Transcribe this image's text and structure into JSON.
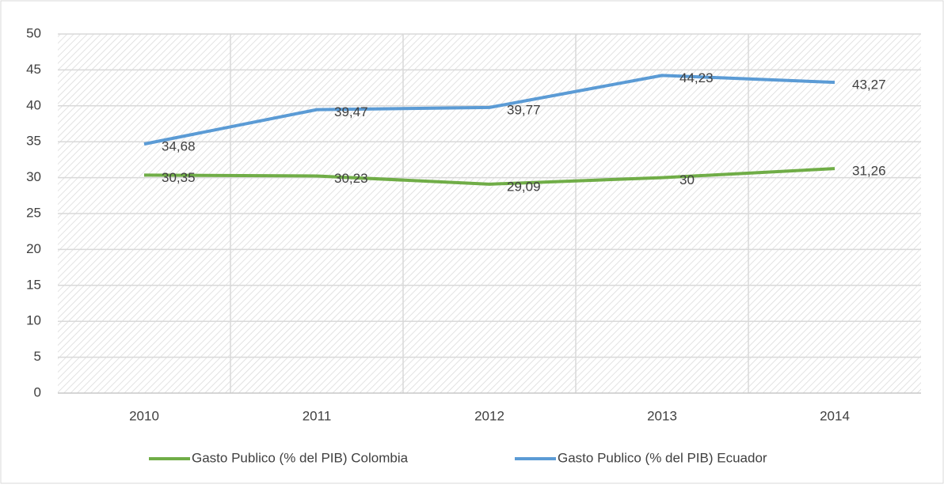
{
  "chart_data": {
    "type": "line",
    "categories": [
      "2010",
      "2011",
      "2012",
      "2013",
      "2014"
    ],
    "series": [
      {
        "name": "Gasto Publico (% del PIB) Colombia",
        "color": "#70ad47",
        "values": [
          30.35,
          30.23,
          29.09,
          30,
          31.26
        ],
        "value_labels": [
          "30,35",
          "30,23",
          "29,09",
          "30",
          "31,26"
        ]
      },
      {
        "name": "Gasto Publico (% del PIB) Ecuador",
        "color": "#5b9bd5",
        "values": [
          34.68,
          39.47,
          39.77,
          44.23,
          43.27
        ],
        "value_labels": [
          "34,68",
          "39,47",
          "39,77",
          "44,23",
          "43,27"
        ]
      }
    ],
    "ylim": [
      0,
      50
    ],
    "yticks": [
      0,
      5,
      10,
      15,
      20,
      25,
      30,
      35,
      40,
      45,
      50
    ],
    "grid": true,
    "legend": "bottom"
  }
}
